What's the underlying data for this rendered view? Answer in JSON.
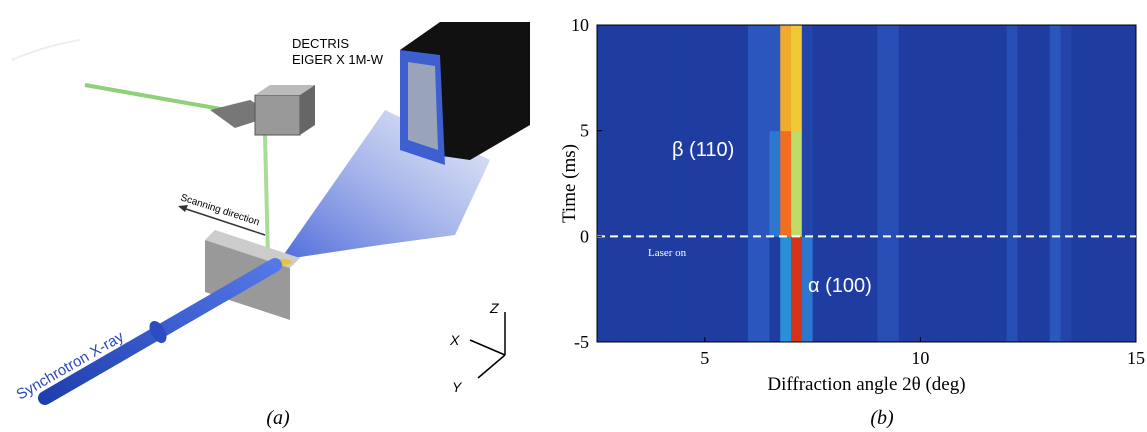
{
  "illustration": {
    "detector_label": [
      "DECTRIS",
      "EIGER X 1M-W"
    ],
    "scan_label": "Scanning direction",
    "beam_label": "Synchrotron X-ray",
    "axes": [
      "Z",
      "X",
      "Y"
    ],
    "caption": "(a)"
  },
  "chart_data": {
    "type": "heatmap",
    "caption": "(b)",
    "xlabel": "Diffraction angle 2θ (deg)",
    "ylabel": "Time (ms)",
    "xlim": [
      2.5,
      15
    ],
    "ylim": [
      -5,
      10
    ],
    "xticks": [
      5,
      10,
      15
    ],
    "yticks": [
      -5,
      0,
      5,
      10
    ],
    "xbins": [
      2.5,
      2.75,
      3,
      3.25,
      3.5,
      3.75,
      4,
      4.25,
      4.5,
      4.75,
      5,
      5.25,
      5.5,
      5.75,
      6,
      6.25,
      6.5,
      6.75,
      7,
      7.25,
      7.5,
      7.75,
      8,
      8.25,
      8.5,
      8.75,
      9,
      9.25,
      9.5,
      9.75,
      10,
      10.25,
      10.5,
      10.75,
      11,
      11.25,
      11.5,
      11.75,
      12,
      12.25,
      12.5,
      12.75,
      13,
      13.25,
      13.5,
      13.75,
      14,
      14.25,
      14.5,
      14.75,
      15
    ],
    "ybins": [
      -5,
      0,
      5,
      10
    ],
    "z": [
      [
        0.05,
        0.05,
        0.05,
        0.05,
        0.05,
        0.05,
        0.05,
        0.05,
        0.05,
        0.05,
        0.05,
        0.05,
        0.05,
        0.05,
        0.2,
        0.2,
        0.05,
        0.35,
        0.95,
        0.3,
        0.05,
        0.05,
        0.05,
        0.05,
        0.05,
        0.05,
        0.15,
        0.15,
        0.05,
        0.05,
        0.05,
        0.05,
        0.05,
        0.05,
        0.05,
        0.05,
        0.05,
        0.05,
        0.15,
        0.05,
        0.05,
        0.05,
        0.2,
        0.1,
        0.05,
        0.05,
        0.05,
        0.05,
        0.05,
        0.05
      ],
      [
        0.05,
        0.05,
        0.05,
        0.05,
        0.05,
        0.05,
        0.05,
        0.05,
        0.05,
        0.05,
        0.05,
        0.05,
        0.05,
        0.05,
        0.2,
        0.2,
        0.3,
        0.85,
        0.6,
        0.1,
        0.05,
        0.05,
        0.05,
        0.05,
        0.05,
        0.05,
        0.15,
        0.15,
        0.05,
        0.05,
        0.05,
        0.05,
        0.05,
        0.05,
        0.05,
        0.05,
        0.05,
        0.05,
        0.15,
        0.05,
        0.05,
        0.05,
        0.2,
        0.1,
        0.05,
        0.05,
        0.05,
        0.05,
        0.05,
        0.05
      ],
      [
        0.05,
        0.05,
        0.05,
        0.05,
        0.05,
        0.05,
        0.05,
        0.05,
        0.05,
        0.05,
        0.05,
        0.05,
        0.05,
        0.05,
        0.2,
        0.2,
        0.2,
        0.75,
        0.7,
        0.1,
        0.05,
        0.05,
        0.05,
        0.05,
        0.05,
        0.05,
        0.15,
        0.15,
        0.05,
        0.05,
        0.05,
        0.05,
        0.05,
        0.05,
        0.05,
        0.05,
        0.05,
        0.05,
        0.15,
        0.05,
        0.05,
        0.05,
        0.2,
        0.1,
        0.05,
        0.05,
        0.05,
        0.05,
        0.05,
        0.05
      ]
    ],
    "marker_line": 0,
    "annotations": [
      "β (110)",
      "α  (100)",
      "Laser on"
    ]
  }
}
